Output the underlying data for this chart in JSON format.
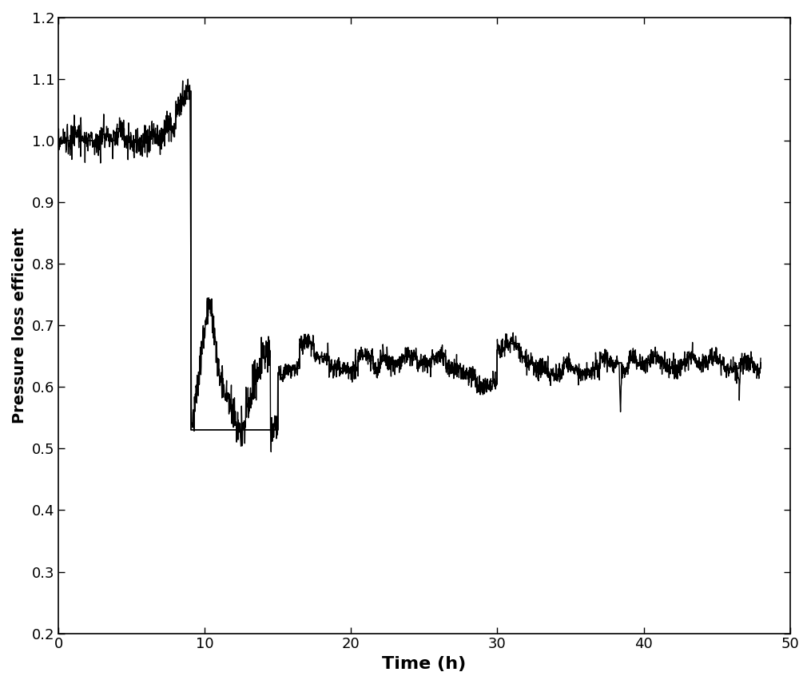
{
  "title": "",
  "xlabel": "Time (h)",
  "ylabel": "Pressure loss efficient",
  "xlim": [
    0,
    50
  ],
  "ylim": [
    0.2,
    1.2
  ],
  "xticks": [
    0,
    10,
    20,
    30,
    40,
    50
  ],
  "yticks": [
    0.2,
    0.3,
    0.4,
    0.5,
    0.6,
    0.7,
    0.8,
    0.9,
    1.0,
    1.1,
    1.2
  ],
  "line_color": "#000000",
  "background_color": "#ffffff",
  "linewidth": 1.0,
  "figsize": [
    10.15,
    8.56
  ],
  "dpi": 100,
  "xlabel_fontsize": 16,
  "ylabel_fontsize": 14,
  "tick_fontsize": 13,
  "step_times": [
    0,
    0.5,
    1.0,
    1.5,
    2.0,
    2.5,
    3.0,
    3.5,
    4.0,
    4.5,
    5.0,
    5.2,
    5.5,
    5.8,
    6.0,
    6.3,
    6.7,
    7.0,
    7.3,
    7.7,
    8.0,
    8.3,
    8.7,
    9.0,
    9.05,
    15.0,
    15.5,
    16.5,
    17.5,
    18.5,
    19.5,
    20.5,
    21.5,
    22.0,
    22.5,
    23.5,
    24.5,
    25.5,
    26.5,
    27.5,
    28.5,
    29.5,
    30.0,
    30.5,
    31.5,
    32.0,
    32.5,
    33.5,
    34.5,
    35.0,
    35.5,
    36.5,
    37.0,
    37.5,
    38.5,
    39.0,
    39.5,
    40.5,
    41.0,
    41.5,
    42.5,
    43.0,
    43.5,
    44.5,
    45.0,
    45.5,
    46.5,
    47.5,
    48.0
  ],
  "step_vals": [
    1.0,
    1.0,
    1.01,
    1.0,
    1.0,
    1.0,
    1.01,
    1.0,
    1.02,
    1.0,
    0.99,
    1.0,
    0.99,
    1.0,
    1.0,
    1.01,
    1.0,
    1.01,
    1.03,
    1.02,
    1.05,
    1.06,
    1.08,
    1.08,
    0.53,
    0.62,
    0.63,
    0.67,
    0.65,
    0.63,
    0.63,
    0.65,
    0.63,
    0.65,
    0.64,
    0.65,
    0.64,
    0.65,
    0.63,
    0.62,
    0.6,
    0.61,
    0.66,
    0.67,
    0.65,
    0.64,
    0.63,
    0.62,
    0.64,
    0.63,
    0.62,
    0.63,
    0.65,
    0.64,
    0.63,
    0.65,
    0.64,
    0.65,
    0.64,
    0.63,
    0.64,
    0.65,
    0.64,
    0.65,
    0.64,
    0.63,
    0.64,
    0.63,
    0.64
  ]
}
